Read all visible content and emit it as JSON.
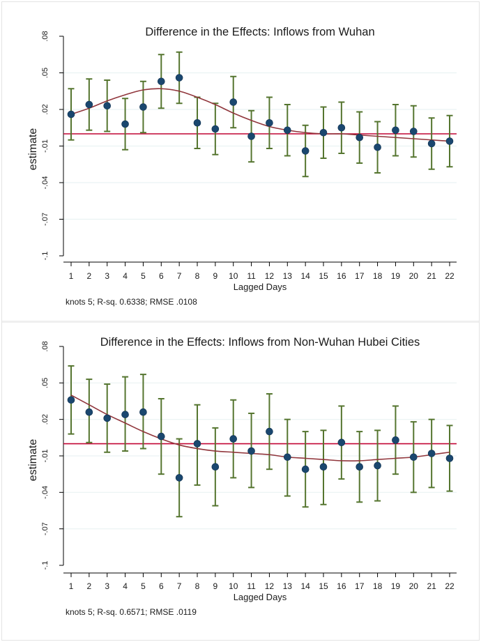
{
  "chart_data": [
    {
      "type": "scatter",
      "title": "Difference in the Effects: Inflows from Wuhan",
      "xlabel": "Lagged Days",
      "ylabel": "estimate",
      "note": "knots 5; R-sq. 0.6338; RMSE  .0108",
      "x": [
        1,
        2,
        3,
        4,
        5,
        6,
        7,
        8,
        9,
        10,
        11,
        12,
        13,
        14,
        15,
        16,
        17,
        18,
        19,
        20,
        21,
        22
      ],
      "yticks": [
        ".08",
        ".05",
        ".02",
        "-.01",
        "-.04",
        "-.07",
        "-.1"
      ],
      "ytick_values": [
        0.08,
        0.05,
        0.02,
        -0.01,
        -0.04,
        -0.07,
        -0.1
      ],
      "ylim": [
        -0.1,
        0.08
      ],
      "reference_line": 0,
      "grid": true,
      "series": [
        {
          "values": [
            0.016,
            0.024,
            0.023,
            0.008,
            0.022,
            0.043,
            0.046,
            0.009,
            0.004,
            0.026,
            -0.002,
            0.009,
            0.003,
            -0.014,
            0.001,
            0.005,
            -0.003,
            -0.011,
            0.003,
            0.002,
            -0.008,
            -0.006
          ]
        },
        {
          "ci_low": [
            -0.005,
            0.003,
            0.002,
            -0.013,
            0.001,
            0.021,
            0.025,
            -0.012,
            -0.017,
            0.005,
            -0.023,
            -0.012,
            -0.018,
            -0.035,
            -0.02,
            -0.016,
            -0.024,
            -0.032,
            -0.018,
            -0.019,
            -0.029,
            -0.027
          ]
        },
        {
          "ci_high": [
            0.037,
            0.045,
            0.044,
            0.029,
            0.043,
            0.065,
            0.067,
            0.03,
            0.025,
            0.047,
            0.019,
            0.03,
            0.024,
            0.007,
            0.022,
            0.026,
            0.018,
            0.01,
            0.024,
            0.023,
            0.013,
            0.015
          ]
        },
        {
          "spline": [
            0.016,
            0.021,
            0.027,
            0.032,
            0.036,
            0.037,
            0.035,
            0.03,
            0.024,
            0.017,
            0.011,
            0.006,
            0.003,
            0.001,
            0.0,
            0.0,
            -0.001,
            -0.002,
            -0.003,
            -0.004,
            -0.005,
            -0.006
          ]
        }
      ]
    },
    {
      "type": "scatter",
      "title": "Difference in the Effects: Inflows from Non-Wuhan Hubei Cities",
      "xlabel": "Lagged Days",
      "ylabel": "estimate",
      "note": "knots 5; R-sq. 0.6571; RMSE  .0119",
      "x": [
        1,
        2,
        3,
        4,
        5,
        6,
        7,
        8,
        9,
        10,
        11,
        12,
        13,
        14,
        15,
        16,
        17,
        18,
        19,
        20,
        21,
        22
      ],
      "yticks": [
        ".08",
        ".05",
        ".02",
        "-.01",
        "-.04",
        "-.07",
        "-.1"
      ],
      "ytick_values": [
        0.08,
        0.05,
        0.02,
        -0.01,
        -0.04,
        -0.07,
        -0.1
      ],
      "ylim": [
        -0.1,
        0.08
      ],
      "reference_line": 0,
      "grid": true,
      "series": [
        {
          "values": [
            0.036,
            0.026,
            0.021,
            0.024,
            0.026,
            0.006,
            -0.028,
            0.0,
            -0.019,
            0.004,
            -0.006,
            0.01,
            -0.011,
            -0.021,
            -0.019,
            0.001,
            -0.019,
            -0.018,
            0.003,
            -0.011,
            -0.008,
            -0.012
          ]
        },
        {
          "ci_low": [
            0.008,
            0.001,
            -0.007,
            -0.006,
            -0.004,
            -0.025,
            -0.06,
            -0.034,
            -0.051,
            -0.028,
            -0.036,
            -0.021,
            -0.043,
            -0.052,
            -0.05,
            -0.029,
            -0.048,
            -0.047,
            -0.025,
            -0.04,
            -0.036,
            -0.039
          ]
        },
        {
          "ci_high": [
            0.064,
            0.053,
            0.049,
            0.055,
            0.057,
            0.037,
            0.004,
            0.032,
            0.013,
            0.036,
            0.025,
            0.041,
            0.02,
            0.01,
            0.011,
            0.031,
            0.01,
            0.011,
            0.031,
            0.018,
            0.02,
            0.015
          ]
        },
        {
          "spline": [
            0.04,
            0.032,
            0.024,
            0.017,
            0.01,
            0.004,
            -0.001,
            -0.004,
            -0.006,
            -0.007,
            -0.008,
            -0.009,
            -0.011,
            -0.012,
            -0.013,
            -0.014,
            -0.014,
            -0.013,
            -0.012,
            -0.011,
            -0.009,
            -0.007
          ]
        }
      ]
    }
  ],
  "colors": {
    "point": "#1a476f",
    "ci": "#55752f",
    "spline": "#90353b",
    "refline": "#c10534",
    "grid": "#eaf2f3",
    "axis": "#000000"
  }
}
